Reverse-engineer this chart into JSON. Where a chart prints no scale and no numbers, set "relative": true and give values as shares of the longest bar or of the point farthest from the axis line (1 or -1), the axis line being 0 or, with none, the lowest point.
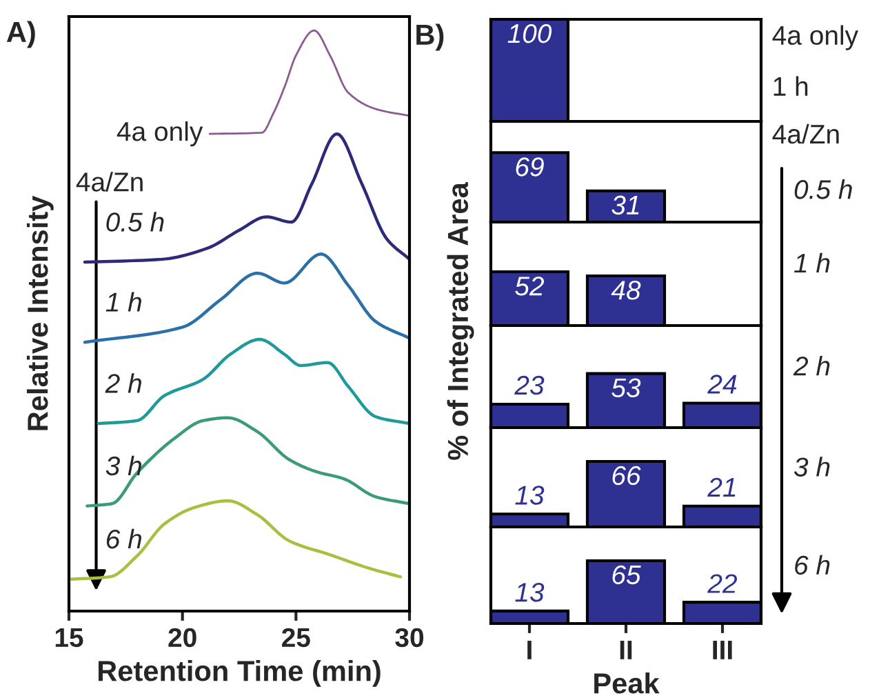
{
  "chart_data": [
    {
      "type": "line",
      "title": "A)",
      "xlabel": "Retention Time (min)",
      "ylabel": "Relative Intensity",
      "relative": true,
      "xlim": [
        15,
        30
      ],
      "xticks": [
        15,
        20,
        25,
        30
      ],
      "tick_labels": "x",
      "annotations": [
        "4a/Zn"
      ],
      "series": [
        {
          "name": "4a only",
          "color": "#8a5a90",
          "x": [
            21.2,
            23.5,
            24,
            24.5,
            25,
            25.8,
            26.5,
            27.3,
            28.5,
            30
          ],
          "values": [
            0.822,
            0.824,
            0.857,
            0.903,
            0.957,
            1.0,
            0.957,
            0.893,
            0.865,
            0.853
          ]
        },
        {
          "name": "0.5 h",
          "color": "#2d2a7a",
          "x": [
            15.7,
            19.1,
            21.1,
            22.5,
            23.7,
            24.8,
            25.7,
            26.8,
            27.9,
            29,
            30
          ],
          "values": [
            0.601,
            0.606,
            0.625,
            0.656,
            0.679,
            0.67,
            0.736,
            0.822,
            0.736,
            0.641,
            0.606
          ]
        },
        {
          "name": "1 h",
          "color": "#2a6fa8",
          "x": [
            15.7,
            20,
            21.7,
            23.3,
            24.5,
            26.1,
            27.3,
            28.5,
            30
          ],
          "values": [
            0.463,
            0.489,
            0.537,
            0.582,
            0.565,
            0.615,
            0.561,
            0.499,
            0.47
          ]
        },
        {
          "name": "2 h",
          "color": "#1f9a9a",
          "x": [
            16.3,
            18,
            19.2,
            20.9,
            22.1,
            23.4,
            24.5,
            25.2,
            26.4,
            27.3,
            28.5,
            30
          ],
          "values": [
            0.323,
            0.328,
            0.371,
            0.399,
            0.442,
            0.468,
            0.442,
            0.423,
            0.428,
            0.387,
            0.335,
            0.323
          ]
        },
        {
          "name": "3 h",
          "color": "#3a9a7a",
          "x": [
            15.8,
            16.9,
            18,
            19.7,
            20.9,
            22,
            23.3,
            24.7,
            25.9,
            27.1,
            28.5,
            30
          ],
          "values": [
            0.181,
            0.185,
            0.238,
            0.299,
            0.328,
            0.333,
            0.309,
            0.261,
            0.24,
            0.228,
            0.197,
            0.185
          ]
        },
        {
          "name": "6 h",
          "color": "#a8c040",
          "x": [
            15.1,
            16.8,
            18,
            19.2,
            20.5,
            22,
            23.3,
            24.7,
            26.5,
            28.2,
            29.6
          ],
          "values": [
            0.055,
            0.059,
            0.095,
            0.15,
            0.178,
            0.19,
            0.166,
            0.121,
            0.097,
            0.074,
            0.059
          ]
        }
      ]
    },
    {
      "type": "bar",
      "title": "B)",
      "ylabel": "% of Integrated Area",
      "categories": [
        null,
        null,
        null
      ],
      "values": [
        100,
        null,
        null
      ],
      "color": "#2e3192",
      "ylim": [
        0,
        100
      ],
      "data_labels": true,
      "tick_labels": false,
      "annotations": [
        "4a only",
        "1 h"
      ]
    },
    {
      "type": "bar",
      "categories": [
        null,
        null,
        null
      ],
      "values": [
        69,
        31,
        null
      ],
      "color": "#2e3192",
      "ylim": [
        0,
        100
      ],
      "data_labels": true,
      "tick_labels": false,
      "annotations": [
        "4a/Zn",
        "0.5 h"
      ]
    },
    {
      "type": "bar",
      "categories": [
        null,
        null,
        null
      ],
      "values": [
        52,
        48,
        null
      ],
      "color": "#2e3192",
      "ylim": [
        0,
        100
      ],
      "data_labels": true,
      "tick_labels": false,
      "annotations": [
        "1 h"
      ]
    },
    {
      "type": "bar",
      "categories": [
        null,
        null,
        null
      ],
      "values": [
        23,
        53,
        24
      ],
      "color": "#2e3192",
      "ylim": [
        0,
        100
      ],
      "data_labels": true,
      "tick_labels": false,
      "annotations": [
        "2 h"
      ]
    },
    {
      "type": "bar",
      "categories": [
        null,
        null,
        null
      ],
      "values": [
        13,
        66,
        21
      ],
      "color": "#2e3192",
      "ylim": [
        0,
        100
      ],
      "data_labels": true,
      "tick_labels": false,
      "annotations": [
        "3 h"
      ]
    },
    {
      "type": "bar",
      "xlabel": "Peak",
      "categories": [
        "I",
        "II",
        "III"
      ],
      "values": [
        13,
        65,
        22
      ],
      "color": "#2e3192",
      "ylim": [
        0,
        100
      ],
      "data_labels": true,
      "tick_labels": "x",
      "annotations": [
        "6 h"
      ]
    }
  ]
}
